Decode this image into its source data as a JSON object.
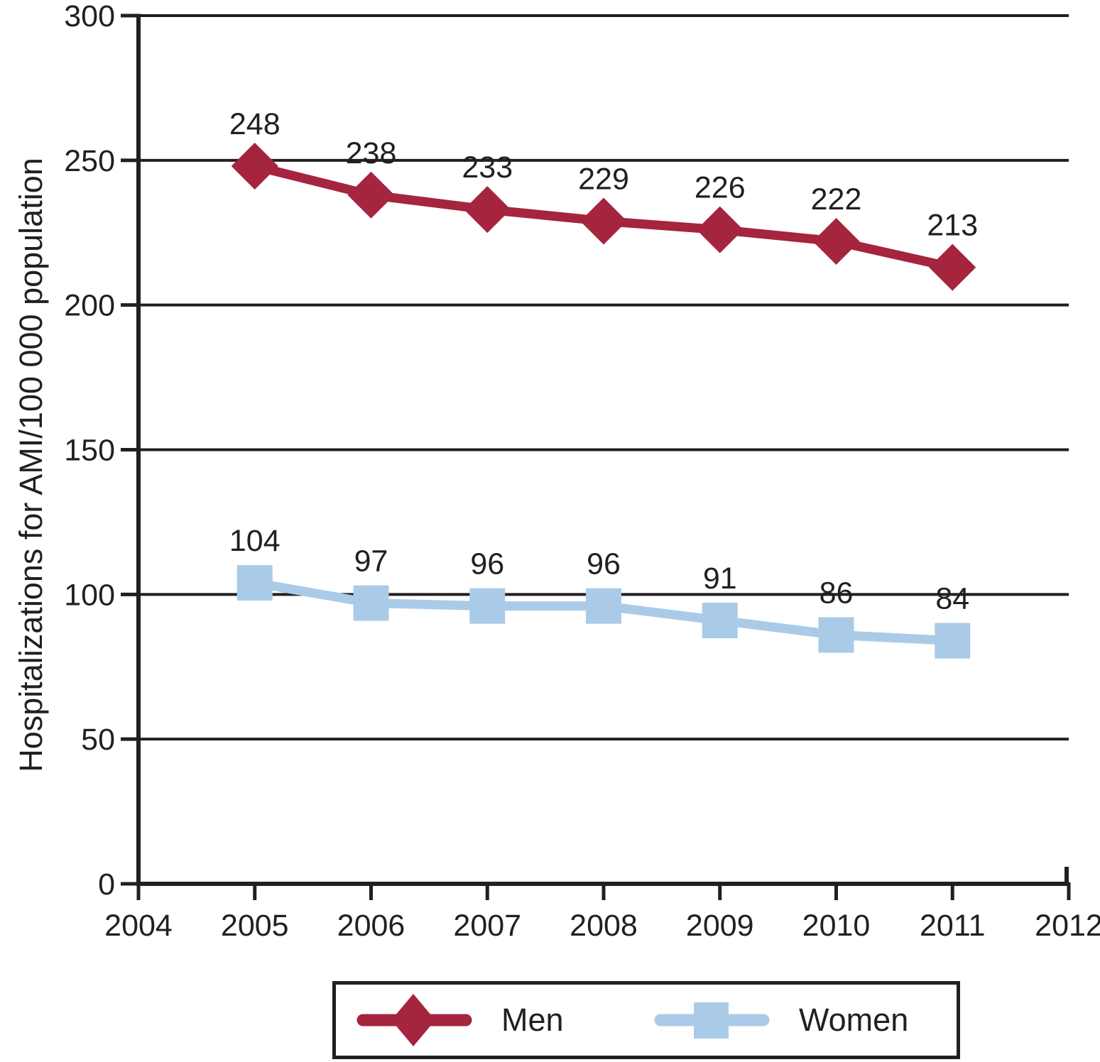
{
  "chart_data": {
    "type": "line",
    "title": "",
    "xlabel": "",
    "ylabel": "Hospitalizations for AMI/100 000 population",
    "x": [
      2005,
      2006,
      2007,
      2008,
      2009,
      2010,
      2011
    ],
    "xticks": [
      2004,
      2005,
      2006,
      2007,
      2008,
      2009,
      2010,
      2011,
      2012
    ],
    "yticks": [
      0,
      50,
      100,
      150,
      200,
      250,
      300
    ],
    "xlim": [
      2004,
      2012
    ],
    "ylim": [
      0,
      300
    ],
    "grid": "horizontal-on",
    "legend_position": "bottom-center",
    "axis_color": "#231F20",
    "text_color": "#231F20",
    "background_color": "#ffffff",
    "series": [
      {
        "name": "Men",
        "marker": "diamond",
        "color": "#A5243E",
        "values": [
          248,
          238,
          233,
          229,
          226,
          222,
          213
        ],
        "value_labels": [
          "248",
          "238",
          "233",
          "229",
          "226",
          "222",
          "213"
        ]
      },
      {
        "name": "Women",
        "marker": "square",
        "color": "#AACBE7",
        "values": [
          104,
          97,
          96,
          96,
          91,
          86,
          84
        ],
        "value_labels": [
          "104",
          "97",
          "96",
          "96",
          "91",
          "86",
          "84"
        ]
      }
    ]
  }
}
